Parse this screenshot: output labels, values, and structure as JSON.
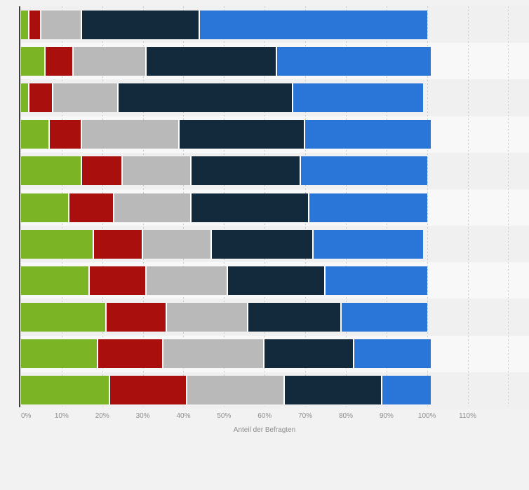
{
  "page": {
    "background_color": "#f2f2f2",
    "plot_band_dark": "#f0f0f0",
    "plot_band_light": "#f8f8f8",
    "axis_line_color": "#3f3f3f",
    "gridline_color": "#c9c9c9",
    "tick_label_color": "#8e8e8e"
  },
  "chart_data": {
    "type": "bar",
    "orientation": "horizontal",
    "stacked": true,
    "title": "",
    "xlabel": "Anteil der Befragten",
    "ylabel": "",
    "x_tick_labels": [
      "0%",
      "10%",
      "20%",
      "30%",
      "40%",
      "50%",
      "60%",
      "70%",
      "80%",
      "90%",
      "100%",
      "110%"
    ],
    "xlim": [
      0,
      125
    ],
    "grid": "vertical dotted gridlines every 10% from 10% to 120%, no horizontal gridlines",
    "legend": "none",
    "row_labels_visible": false,
    "row_count": 11,
    "unit": "%",
    "series": [
      {
        "name": "green",
        "color": "#7bb425",
        "values": [
          2,
          6,
          2,
          7,
          15,
          12,
          18,
          17,
          21,
          19,
          22
        ]
      },
      {
        "name": "dark-red",
        "color": "#a80f0d",
        "values": [
          3,
          7,
          6,
          8,
          10,
          11,
          12,
          14,
          15,
          16,
          19
        ]
      },
      {
        "name": "gray",
        "color": "#b9b9b9",
        "values": [
          10,
          18,
          16,
          24,
          17,
          19,
          17,
          20,
          20,
          25,
          24
        ]
      },
      {
        "name": "dark-navy",
        "color": "#13293c",
        "values": [
          29,
          32,
          43,
          31,
          27,
          29,
          25,
          24,
          23,
          22,
          24
        ]
      },
      {
        "name": "blue",
        "color": "#2a76d8",
        "values": [
          56,
          38,
          32,
          31,
          31,
          29,
          27,
          25,
          21,
          19,
          12
        ]
      }
    ],
    "row_totals": [
      100,
      101,
      99,
      101,
      100,
      100,
      99,
      100,
      100,
      101,
      101
    ]
  }
}
